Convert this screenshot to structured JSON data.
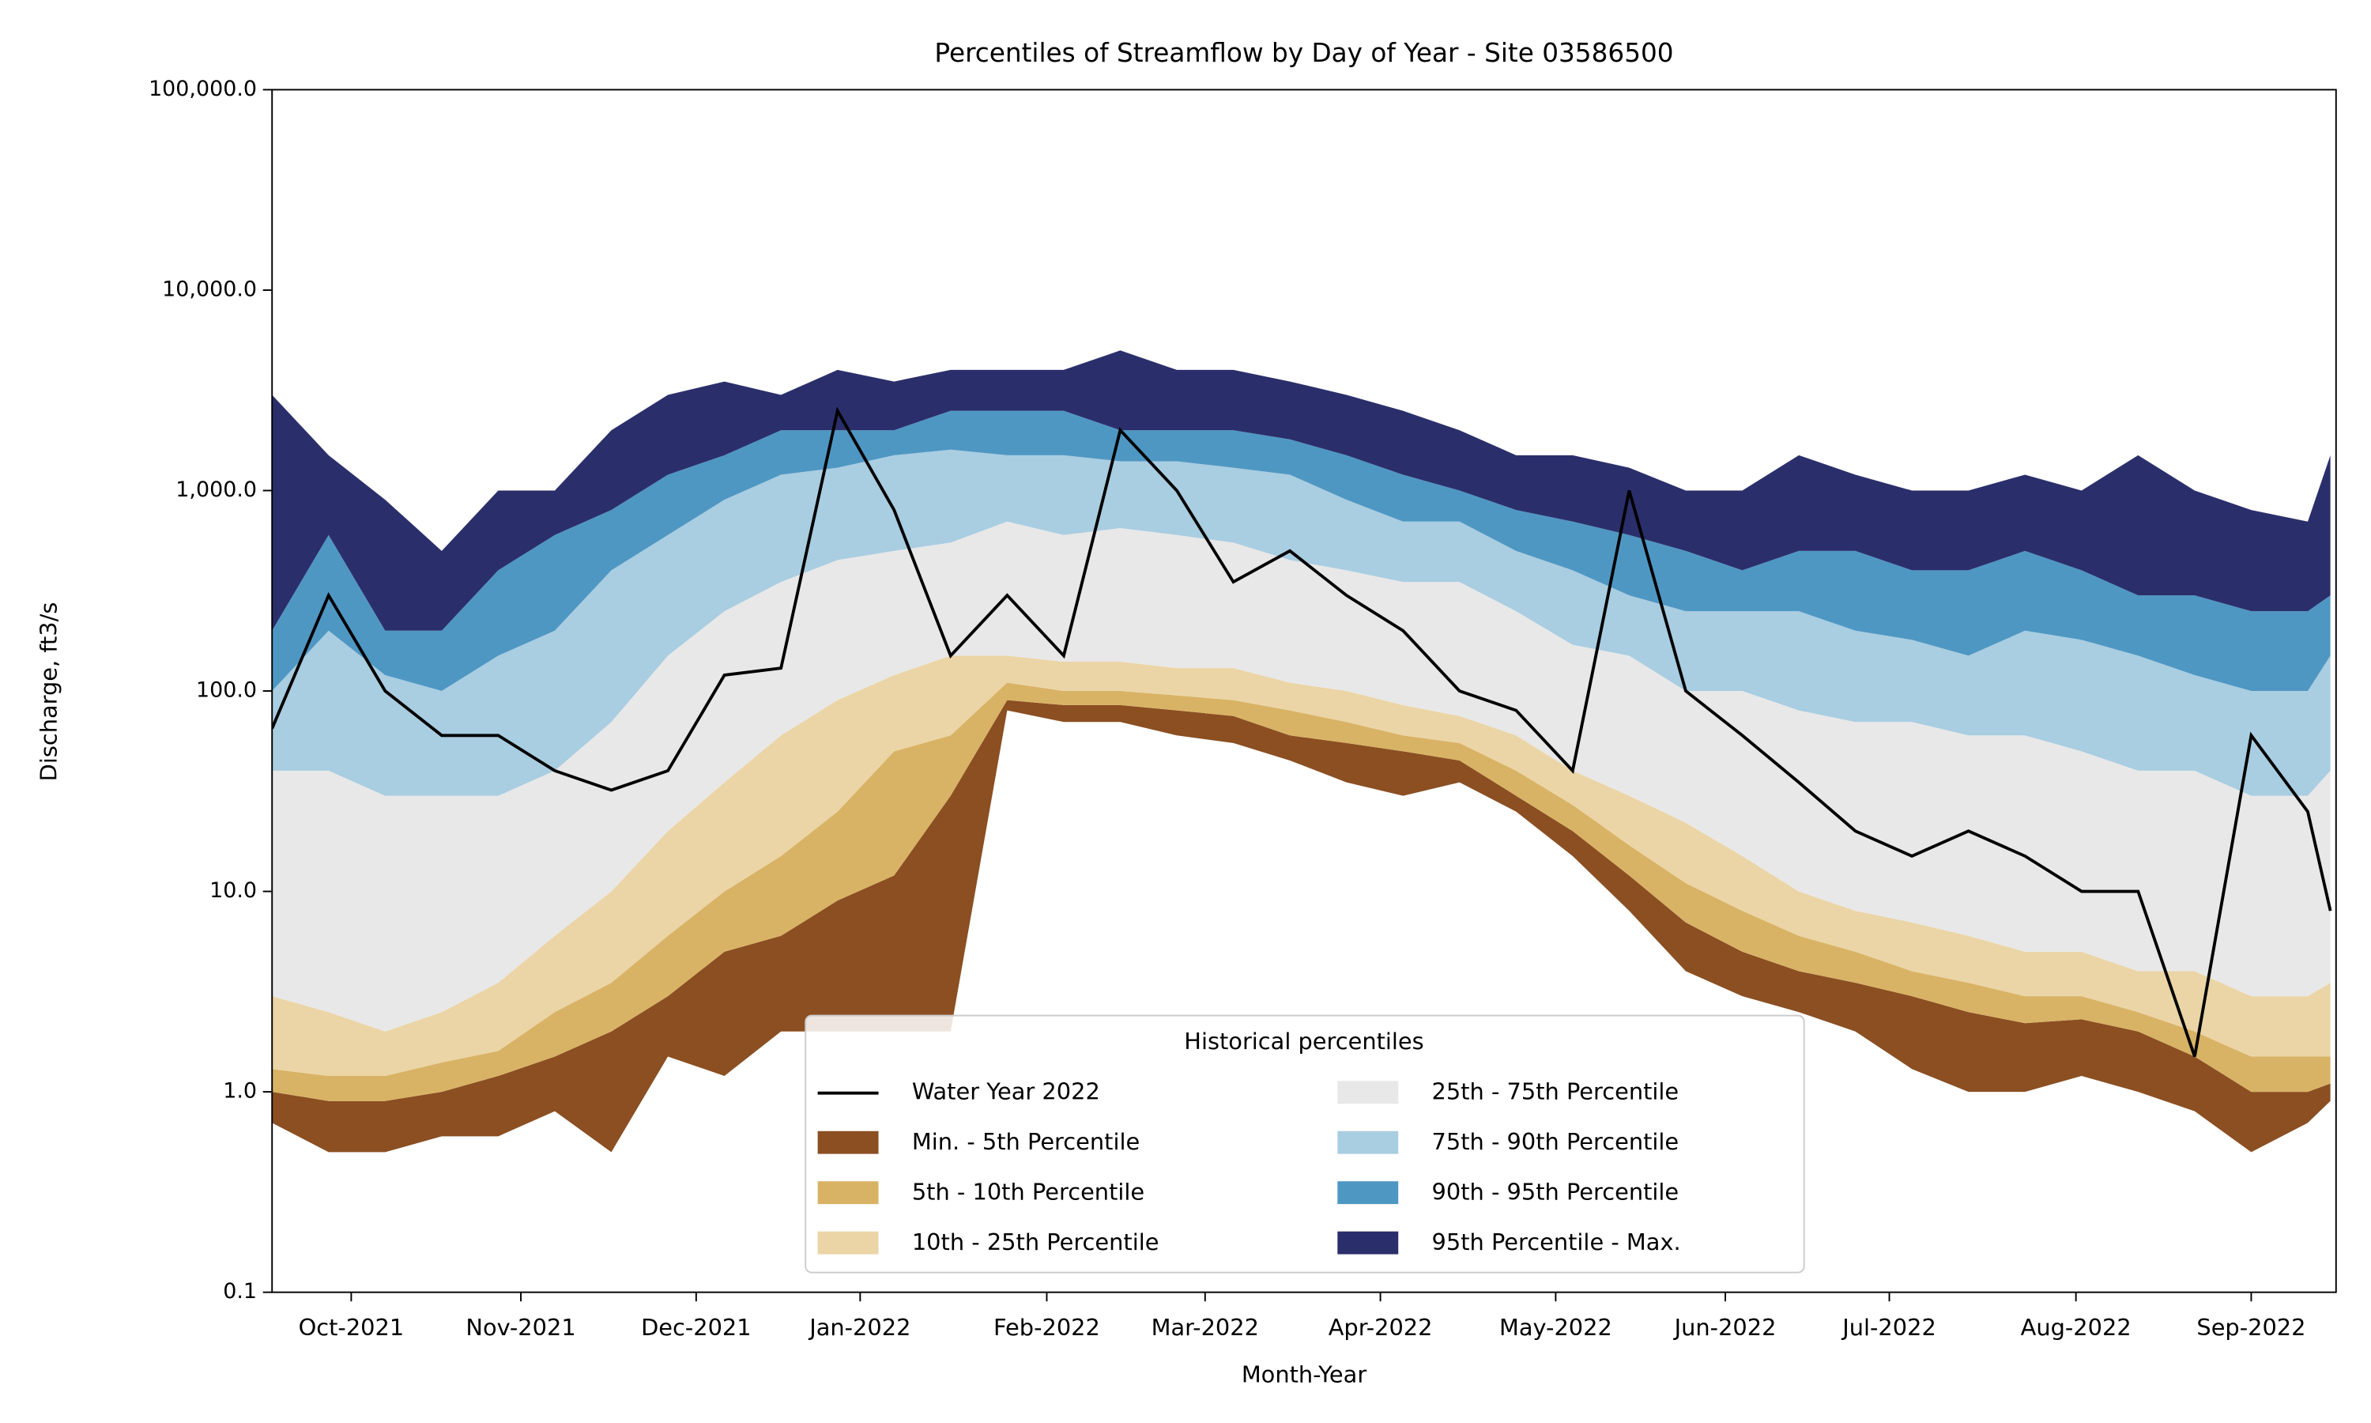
{
  "chart_data": {
    "type": "band-line",
    "title": "Percentiles of Streamflow by Day of Year - Site 03586500",
    "xlabel": "Month-Year",
    "ylabel": "Discharge, ft3/s",
    "legend_title": "Historical percentiles",
    "legend": "lower center",
    "log_y": true,
    "ylim": [
      0.1,
      100000
    ],
    "yticks": [
      0.1,
      {
        "value": 1,
        "label": "1.0"
      },
      {
        "value": 10,
        "label": "10.0"
      },
      {
        "value": 100,
        "label": "100.0"
      },
      {
        "value": 1000,
        "label": "1,000.0"
      },
      {
        "value": 10000,
        "label": "10,000.0"
      },
      {
        "value": 100000,
        "label": "100,000.0"
      }
    ],
    "xlim": [
      0,
      365
    ],
    "xticks": [
      {
        "value": 14,
        "label": "Oct-2021"
      },
      {
        "value": 44,
        "label": "Nov-2021"
      },
      {
        "value": 75,
        "label": "Dec-2021"
      },
      {
        "value": 104,
        "label": "Jan-2022"
      },
      {
        "value": 137,
        "label": "Feb-2022"
      },
      {
        "value": 165,
        "label": "Mar-2022"
      },
      {
        "value": 196,
        "label": "Apr-2022"
      },
      {
        "value": 227,
        "label": "May-2022"
      },
      {
        "value": 257,
        "label": "Jun-2022"
      },
      {
        "value": 286,
        "label": "Jul-2022"
      },
      {
        "value": 319,
        "label": "Aug-2022"
      },
      {
        "value": 350,
        "label": "Sep-2022"
      }
    ],
    "x": [
      0,
      10,
      20,
      30,
      40,
      50,
      60,
      70,
      80,
      90,
      100,
      110,
      120,
      130,
      140,
      150,
      160,
      170,
      180,
      190,
      200,
      210,
      220,
      230,
      240,
      250,
      260,
      270,
      280,
      290,
      300,
      310,
      320,
      330,
      340,
      350,
      360,
      364
    ],
    "series": [
      {
        "name": "Water Year 2022",
        "color": "#000000",
        "values": [
          65,
          300,
          100,
          60,
          60,
          40,
          32,
          40,
          120,
          130,
          2500,
          800,
          150,
          300,
          150,
          2000,
          1000,
          350,
          500,
          300,
          200,
          100,
          80,
          40,
          1000,
          100,
          60,
          35,
          20,
          15,
          20,
          15,
          10,
          10,
          1.5,
          60,
          25,
          8
        ]
      },
      {
        "name": "Min. - 5th Percentile",
        "color": "#8B4F22",
        "lower": [
          0.7,
          0.5,
          0.5,
          0.6,
          0.6,
          0.8,
          0.5,
          1.5,
          1.2,
          2,
          2,
          2,
          2,
          80,
          70,
          70,
          60,
          55,
          45,
          35,
          30,
          35,
          25,
          15,
          8,
          4,
          3,
          2.5,
          2,
          1.3,
          1,
          1,
          1.2,
          1,
          0.8,
          0.5,
          0.7,
          0.9
        ],
        "values": [
          1.0,
          0.9,
          0.9,
          1.0,
          1.2,
          1.5,
          2,
          3,
          5,
          6,
          9,
          12,
          30,
          90,
          85,
          85,
          80,
          75,
          60,
          55,
          50,
          45,
          30,
          20,
          12,
          7,
          5,
          4,
          3.5,
          3,
          2.5,
          2.2,
          2.3,
          2,
          1.5,
          1.0,
          1.0,
          1.1
        ]
      },
      {
        "name": "5th - 10th Percentile",
        "color": "#D9B365",
        "values": [
          1.3,
          1.2,
          1.2,
          1.4,
          1.6,
          2.5,
          3.5,
          6,
          10,
          15,
          25,
          50,
          60,
          110,
          100,
          100,
          95,
          90,
          80,
          70,
          60,
          55,
          40,
          27,
          17,
          11,
          8,
          6,
          5,
          4,
          3.5,
          3,
          3,
          2.5,
          2,
          1.5,
          1.5,
          1.5
        ]
      },
      {
        "name": "10th - 25th Percentile",
        "color": "#EBD5A6",
        "values": [
          3,
          2.5,
          2,
          2.5,
          3.5,
          6,
          10,
          20,
          35,
          60,
          90,
          120,
          150,
          150,
          140,
          140,
          130,
          130,
          110,
          100,
          85,
          75,
          60,
          40,
          30,
          22,
          15,
          10,
          8,
          7,
          6,
          5,
          5,
          4,
          4,
          3,
          3,
          3.5
        ]
      },
      {
        "name": "25th - 75th Percentile",
        "color": "#E8E8E8",
        "values": [
          40,
          40,
          30,
          30,
          30,
          40,
          70,
          150,
          250,
          350,
          450,
          500,
          550,
          700,
          600,
          650,
          600,
          550,
          450,
          400,
          350,
          350,
          250,
          170,
          150,
          100,
          100,
          80,
          70,
          70,
          60,
          60,
          50,
          40,
          40,
          30,
          30,
          40
        ]
      },
      {
        "name": "75th - 90th Percentile",
        "color": "#A9CDE1",
        "values": [
          100,
          200,
          120,
          100,
          150,
          200,
          400,
          600,
          900,
          1200,
          1300,
          1500,
          1600,
          1500,
          1500,
          1400,
          1400,
          1300,
          1200,
          900,
          700,
          700,
          500,
          400,
          300,
          250,
          250,
          250,
          200,
          180,
          150,
          200,
          180,
          150,
          120,
          100,
          100,
          150
        ]
      },
      {
        "name": "90th - 95th Percentile",
        "color": "#4F97C3",
        "values": [
          200,
          600,
          200,
          200,
          400,
          600,
          800,
          1200,
          1500,
          2000,
          2000,
          2000,
          2500,
          2500,
          2500,
          2000,
          2000,
          2000,
          1800,
          1500,
          1200,
          1000,
          800,
          700,
          600,
          500,
          400,
          500,
          500,
          400,
          400,
          500,
          400,
          300,
          300,
          250,
          250,
          300
        ]
      },
      {
        "name": "95th Percentile - Max.",
        "color": "#2A2F6B",
        "values": [
          3000,
          1500,
          900,
          500,
          1000,
          1000,
          2000,
          3000,
          3500,
          3000,
          4000,
          3500,
          4000,
          4000,
          4000,
          5000,
          4000,
          4000,
          3500,
          3000,
          2500,
          2000,
          1500,
          1500,
          1300,
          1000,
          1000,
          1500,
          1200,
          1000,
          1000,
          1200,
          1000,
          1500,
          1000,
          800,
          700,
          1500
        ]
      }
    ]
  }
}
